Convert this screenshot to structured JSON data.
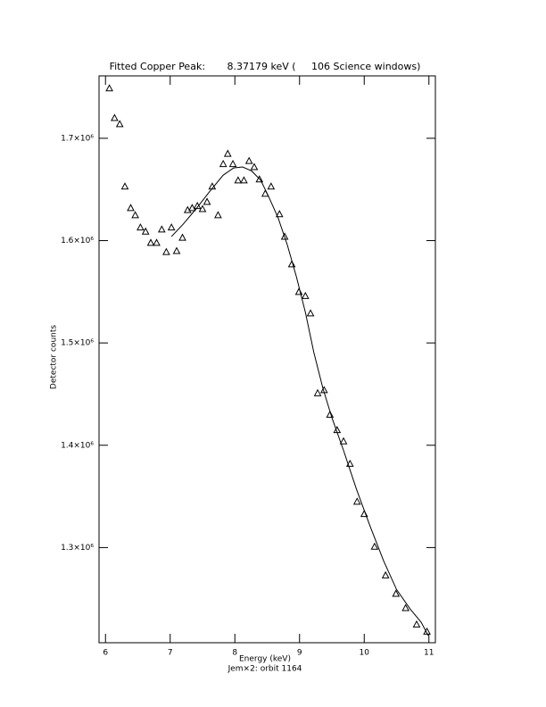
{
  "chart_data": {
    "type": "scatter",
    "title": "Fitted Copper Peak:       8.37179 keV (     106 Science windows)",
    "x_label": "Energy (keV)",
    "subtitle": "Jem×2: orbit 1164",
    "y_label": "Detector counts",
    "xlim": [
      5.9,
      11.1
    ],
    "xticks": [
      6,
      7,
      8,
      9,
      10,
      11
    ],
    "ylim": [
      1207000,
      1761000
    ],
    "yticks": [
      {
        "value": 1300000,
        "label": "1.3×10⁶"
      },
      {
        "value": 1400000,
        "label": "1.4×10⁶"
      },
      {
        "value": 1500000,
        "label": "1.5×10⁶"
      },
      {
        "value": 1600000,
        "label": "1.6×10⁶"
      },
      {
        "value": 1700000,
        "label": "1.7×10⁶"
      }
    ],
    "color": "#000000",
    "points": {
      "x": [
        6.06,
        6.14,
        6.22,
        6.3,
        6.39,
        6.46,
        6.54,
        6.62,
        6.7,
        6.79,
        6.87,
        6.94,
        7.02,
        7.1,
        7.19,
        7.27,
        7.34,
        7.42,
        7.5,
        7.57,
        7.65,
        7.74,
        7.82,
        7.89,
        7.97,
        8.05,
        8.14,
        8.22,
        8.3,
        8.38,
        8.47,
        8.56,
        8.69,
        8.77,
        8.88,
        8.99,
        9.09,
        9.17,
        9.28,
        9.38,
        9.47,
        9.58,
        9.68,
        9.78,
        9.89,
        10.0,
        10.16,
        10.33,
        10.49,
        10.64,
        10.81,
        10.97
      ],
      "values": [
        1749000,
        1720000,
        1714000,
        1653000,
        1632000,
        1625000,
        1613000,
        1609000,
        1598000,
        1598000,
        1611000,
        1589000,
        1613000,
        1590000,
        1603000,
        1630000,
        1632000,
        1634000,
        1631000,
        1638000,
        1653000,
        1625000,
        1675000,
        1685000,
        1675000,
        1659000,
        1659000,
        1678000,
        1672000,
        1660000,
        1646000,
        1653000,
        1626000,
        1604000,
        1577000,
        1550000,
        1546000,
        1529000,
        1451000,
        1454000,
        1430000,
        1415000,
        1404000,
        1382000,
        1345000,
        1333000,
        1301000,
        1273000,
        1255000,
        1241000,
        1225000,
        1218000
      ]
    },
    "fit": {
      "x": [
        7.02,
        7.2,
        7.4,
        7.61,
        7.82,
        7.98,
        8.12,
        8.26,
        8.4,
        8.53,
        8.67,
        8.81,
        8.95,
        9.09,
        9.22,
        9.36,
        9.5,
        9.68,
        9.88,
        10.09,
        10.3,
        10.5,
        10.71,
        10.88,
        10.99
      ],
      "values": [
        1604000,
        1616000,
        1631000,
        1648000,
        1664000,
        1671000,
        1672000,
        1668000,
        1659000,
        1642000,
        1622000,
        1596000,
        1565000,
        1530000,
        1491000,
        1456000,
        1427000,
        1395000,
        1357000,
        1321000,
        1287000,
        1259000,
        1240000,
        1227000,
        1214000
      ]
    }
  }
}
